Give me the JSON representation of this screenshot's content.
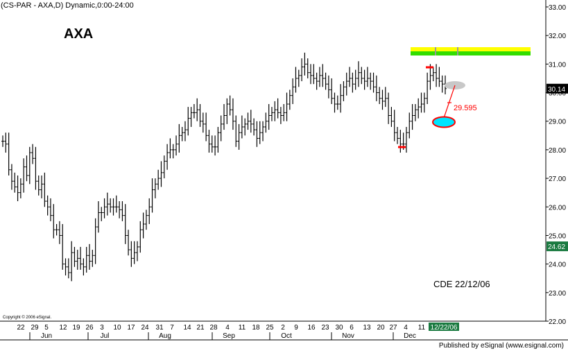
{
  "header": {
    "text": "(CS-PAR - AXA,D) Dynamic,0:00-24:00"
  },
  "title": "AXA",
  "annotation_note": "CDE 22/12/06",
  "copyright": "Copyright © 2006 eSignal.",
  "footer": "Published by eSignal (www.esignal.com)",
  "colors": {
    "bars": "#000000",
    "annotation_red": "#ff0000",
    "target_cyan": "#00e5ff",
    "ellipse_grey": "#c8c8c8",
    "band_yellow": "#ffff00",
    "band_green": "#33dd00",
    "current_price_bg": "#000000",
    "last_bar_bg": "#1a7a40",
    "date_badge_bg": "#1a7a40"
  },
  "chart_data": {
    "type": "bar",
    "subtype": "ohlc",
    "title": "AXA",
    "ylim": [
      22.0,
      33.0
    ],
    "y_ticks": [
      "22.00",
      "23.00",
      "24.00",
      "25.00",
      "26.00",
      "27.00",
      "28.00",
      "29.00",
      "30.00",
      "31.00",
      "32.00",
      "33.00"
    ],
    "y_tick_values": [
      22,
      23,
      24,
      25,
      26,
      27,
      28,
      29,
      30,
      31,
      32,
      33
    ],
    "x_day_labels": [
      "22",
      "29",
      "5",
      "12",
      "19",
      "26",
      "3",
      "10",
      "17",
      "24",
      "31",
      "7",
      "14",
      "21",
      "28",
      "4",
      "11",
      "18",
      "25",
      "2",
      "9",
      "16",
      "23",
      "30",
      "6",
      "13",
      "20",
      "27",
      "4",
      "11",
      "12/22/06"
    ],
    "x_month_labels": [
      "Jun",
      "Jul",
      "Aug",
      "Sep",
      "Oct",
      "Nov",
      "Dec"
    ],
    "current_price_label": "30.14",
    "last_price_label": "24.62",
    "target_label": "29.595",
    "date_badge": "12/22/06",
    "closes": [
      28.3,
      28.2,
      27.3,
      26.9,
      26.7,
      26.5,
      26.8,
      27.4,
      27.1,
      27.9,
      27.7,
      26.9,
      26.6,
      26.8,
      26.2,
      26.0,
      25.7,
      25.2,
      25.2,
      25.0,
      24.0,
      23.9,
      23.7,
      24.4,
      24.1,
      24.2,
      24.0,
      23.9,
      24.3,
      24.1,
      24.3,
      25.3,
      25.8,
      25.8,
      26.0,
      26.1,
      26.0,
      26.0,
      26.0,
      25.9,
      25.7,
      25.0,
      24.5,
      24.2,
      24.4,
      24.6,
      25.2,
      25.4,
      25.7,
      26.0,
      26.6,
      26.8,
      27.0,
      27.2,
      27.6,
      27.9,
      28.0,
      28.0,
      28.2,
      28.5,
      28.6,
      28.7,
      29.1,
      29.3,
      29.3,
      29.4,
      29.0,
      28.9,
      28.5,
      28.2,
      28.1,
      28.1,
      28.6,
      28.9,
      29.2,
      29.6,
      29.4,
      29.0,
      28.3,
      28.6,
      28.8,
      28.9,
      29.0,
      28.9,
      28.7,
      28.4,
      28.6,
      28.8,
      29.0,
      29.2,
      29.3,
      29.4,
      29.3,
      29.2,
      29.3,
      29.6,
      29.9,
      30.2,
      30.5,
      30.6,
      30.9,
      31.0,
      30.7,
      30.6,
      30.5,
      30.4,
      30.6,
      30.5,
      30.3,
      30.1,
      29.8,
      29.6,
      29.6,
      29.9,
      30.2,
      30.4,
      30.5,
      30.3,
      30.5,
      30.7,
      30.5,
      30.4,
      30.5,
      30.4,
      30.2,
      30.0,
      29.8,
      29.7,
      29.8,
      29.2,
      29.0,
      28.6,
      28.4,
      28.2,
      28.2,
      28.6,
      29.0,
      29.2,
      29.4,
      29.5,
      29.6,
      29.8,
      30.4,
      30.6,
      30.7,
      30.5,
      30.4,
      30.3,
      30.14
    ]
  }
}
